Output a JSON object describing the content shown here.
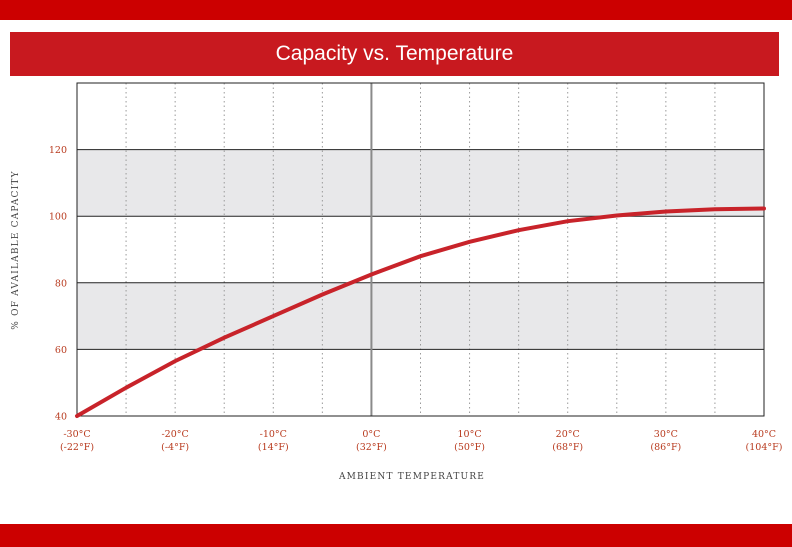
{
  "colors": {
    "brand": "#cc0000",
    "banner": "#c8191f",
    "curve": "#c8232a",
    "band": "#e8e8ea",
    "tick_text": "#b83a1e"
  },
  "chart_data": {
    "type": "line",
    "title": "Capacity vs. Temperature",
    "xlabel": "AMBIENT TEMPERATURE",
    "ylabel": "% OF AVAILABLE CAPACITY",
    "xlim": [
      -30,
      40
    ],
    "ylim": [
      40,
      140
    ],
    "yticks": [
      "40",
      "60",
      "80",
      "100",
      "120"
    ],
    "xticks": [
      {
        "c": "-30°C",
        "f": "(-22°F)",
        "value": -30
      },
      {
        "c": "-20°C",
        "f": "(-4°F)",
        "value": -20
      },
      {
        "c": "-10°C",
        "f": "(14°F)",
        "value": -10
      },
      {
        "c": "0°C",
        "f": "(32°F)",
        "value": 0
      },
      {
        "c": "10°C",
        "f": "(50°F)",
        "value": 10
      },
      {
        "c": "20°C",
        "f": "(68°F)",
        "value": 20
      },
      {
        "c": "30°C",
        "f": "(86°F)",
        "value": 30
      },
      {
        "c": "40°C",
        "f": "(104°F)",
        "value": 40
      }
    ],
    "grid": "horizontal solid lines at 60/80/100/120, dotted verticals every 5°C, shaded bands 60-80 and 100-120",
    "series": [
      {
        "x": [
          -30,
          -25,
          -20,
          -15,
          -10,
          -5,
          0,
          5,
          10,
          15,
          20,
          25,
          30,
          35,
          40
        ],
        "y": [
          40,
          48.5,
          56.5,
          63.5,
          70,
          76.5,
          82.5,
          88,
          92.3,
          95.8,
          98.5,
          100.2,
          101.4,
          102.1,
          102.3
        ]
      }
    ]
  }
}
